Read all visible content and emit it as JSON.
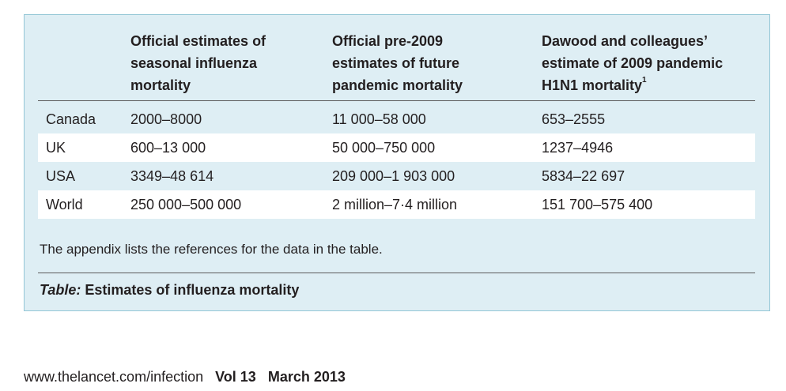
{
  "table": {
    "header": [
      "Official estimates of seasonal influenza mortality",
      "Official pre-2009 estimates of future pandemic mortality",
      "Dawood and colleagues’ estimate of 2009 pandemic H1N1 mortality"
    ],
    "header_superscript": "1",
    "rows": [
      [
        "Canada",
        "2000–8000",
        "11 000–58 000",
        "653–2555"
      ],
      [
        "UK",
        "600–13 000",
        "50 000–750 000",
        "1237–4946"
      ],
      [
        "USA",
        "3349–48 614",
        "209 000–1 903 000",
        "5834–22 697"
      ],
      [
        "World",
        "250 000–500 000",
        "2 million–7·4 million",
        "151 700–575 400"
      ]
    ],
    "note": "The appendix lists the references for the data in the table.",
    "caption": {
      "label": "Table:",
      "text": "Estimates of influenza mortality"
    }
  },
  "footer": {
    "url": "www.thelancet.com/infection",
    "volume": "Vol 13",
    "date": "March 2013"
  }
}
